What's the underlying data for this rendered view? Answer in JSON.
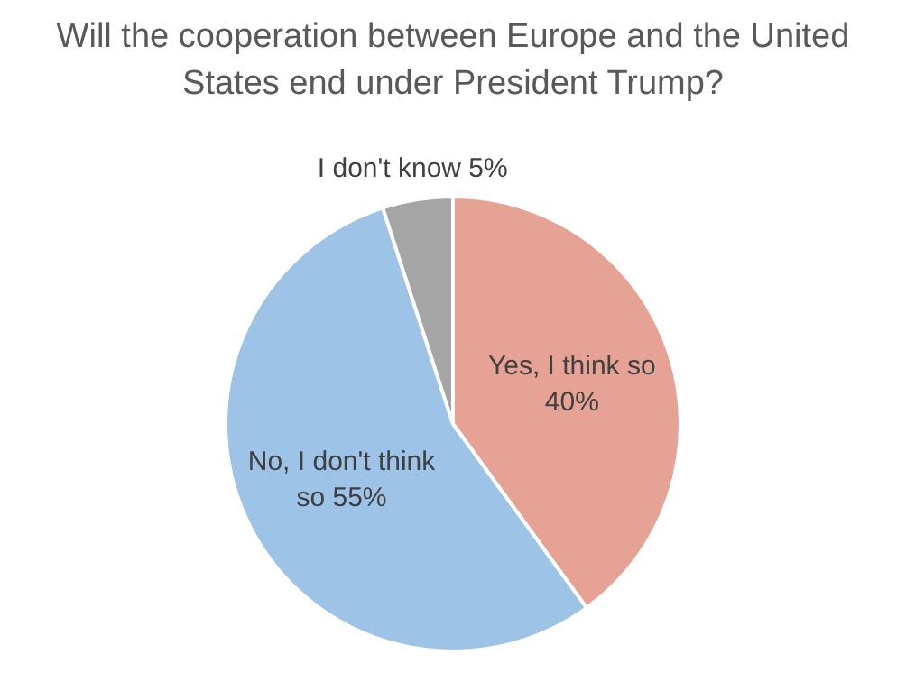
{
  "chart_data": {
    "type": "pie",
    "title": "Will the cooperation between Europe and the United States end under President Trump?",
    "categories": [
      "Yes, I think so",
      "No, I don't think so",
      "I don't know"
    ],
    "values": [
      40,
      55,
      5
    ],
    "colors": [
      "#e6a395",
      "#9dc3e6",
      "#a5a5a5"
    ],
    "value_labels": [
      "40%",
      "55%",
      "5%"
    ],
    "legend": false
  }
}
